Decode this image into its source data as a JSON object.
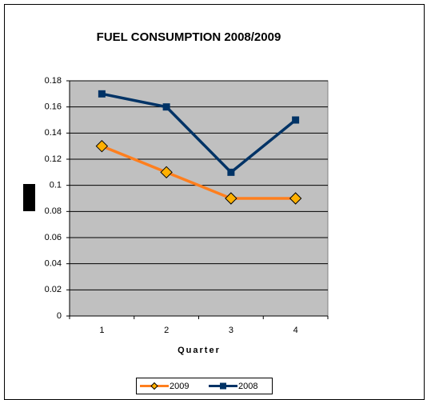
{
  "chart_data": {
    "type": "line",
    "title": "FUEL CONSUMPTION 2008/2009",
    "x_label": "Quarter",
    "categories": [
      "1",
      "2",
      "3",
      "4"
    ],
    "series": [
      {
        "name": "2009",
        "color": "#ff7f1e",
        "marker": "diamond",
        "marker_color": "#ffb000",
        "values": [
          0.13,
          0.11,
          0.09,
          0.09
        ]
      },
      {
        "name": "2008",
        "color": "#003366",
        "marker": "square",
        "marker_color": "#003366",
        "values": [
          0.17,
          0.16,
          0.11,
          0.15
        ]
      }
    ],
    "ylim": [
      0,
      0.18
    ],
    "yticks": [
      0,
      0.02,
      0.04,
      0.06,
      0.08,
      0.1,
      0.12,
      0.14,
      0.16,
      0.18
    ],
    "grid": true,
    "legend": "bottom"
  }
}
